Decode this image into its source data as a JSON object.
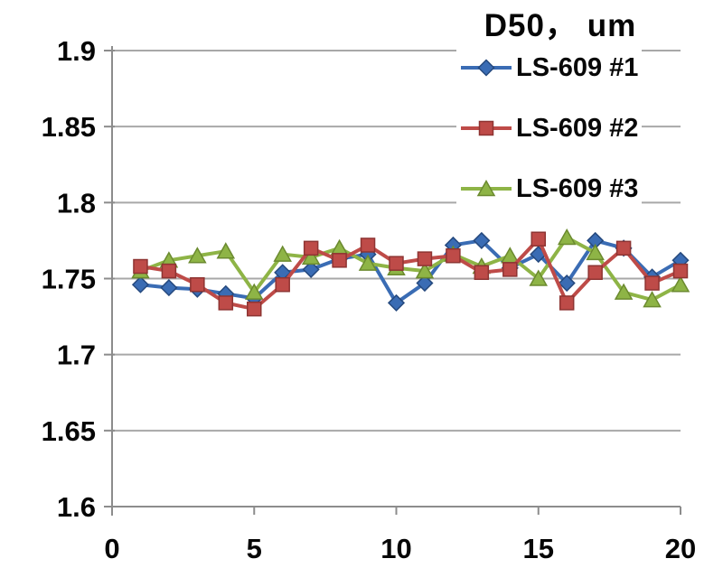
{
  "chart_data": {
    "type": "line",
    "title": "D50， um",
    "x": [
      1,
      2,
      3,
      4,
      5,
      6,
      7,
      8,
      9,
      10,
      11,
      12,
      13,
      14,
      15,
      16,
      17,
      18,
      19,
      20
    ],
    "series": [
      {
        "name": "LS-609 #1",
        "marker": "diamond",
        "color": "#3A6CB4",
        "edge": "#25497E",
        "values": [
          1.746,
          1.744,
          1.743,
          1.74,
          1.737,
          1.754,
          1.756,
          1.763,
          1.766,
          1.734,
          1.747,
          1.772,
          1.775,
          1.757,
          1.766,
          1.747,
          1.775,
          1.77,
          1.751,
          1.762
        ]
      },
      {
        "name": "LS-609 #2",
        "marker": "square",
        "color": "#BE4B48",
        "edge": "#8E3432",
        "values": [
          1.758,
          1.755,
          1.746,
          1.734,
          1.73,
          1.746,
          1.77,
          1.762,
          1.772,
          1.76,
          1.763,
          1.765,
          1.754,
          1.756,
          1.776,
          1.734,
          1.754,
          1.77,
          1.747,
          1.755
        ]
      },
      {
        "name": "LS-609 #3",
        "marker": "triangle",
        "color": "#8EB446",
        "edge": "#6B8A2F",
        "values": [
          1.755,
          1.762,
          1.765,
          1.768,
          1.741,
          1.766,
          1.764,
          1.77,
          1.76,
          1.757,
          1.755,
          1.766,
          1.758,
          1.765,
          1.75,
          1.777,
          1.767,
          1.741,
          1.736,
          1.746
        ]
      }
    ],
    "xlabel": "",
    "ylabel": "",
    "xlim": [
      0,
      20
    ],
    "ylim": [
      1.6,
      1.9
    ],
    "xticks": [
      0,
      5,
      10,
      15,
      20
    ],
    "xtick_labels": [
      "0",
      "5",
      "10",
      "15",
      "20"
    ],
    "yticks": [
      1.6,
      1.65,
      1.7,
      1.75,
      1.8,
      1.85,
      1.9
    ],
    "ytick_labels": [
      "1.6",
      "1.65",
      "1.7",
      "1.75",
      "1.8",
      "1.85",
      "1.9"
    ],
    "grid": true,
    "legend_position": "top-right"
  },
  "colors": {
    "grid": "#A8A8A8",
    "axis": "#8C8C8C",
    "tick_text": "#060606"
  }
}
